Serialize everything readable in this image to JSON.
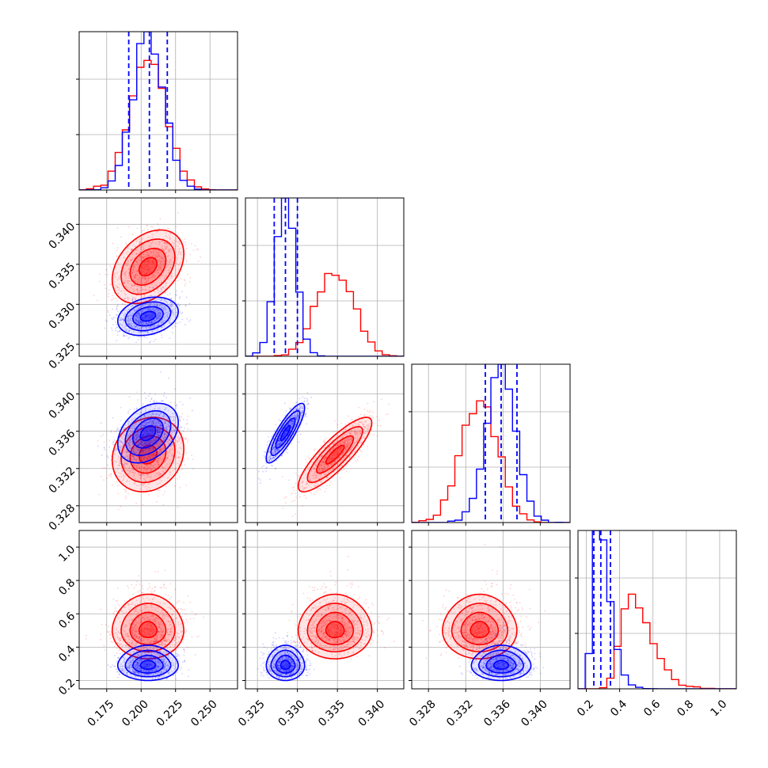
{
  "colors": {
    "red": "#ff0000",
    "blue": "#0000ff",
    "grid": "#b0b0b0",
    "axes": "#000000"
  },
  "chart_data": {
    "type": "corner",
    "grid": true,
    "parameters": [
      {
        "lim": [
          0.155,
          0.27
        ],
        "ticks": [
          0.175,
          0.2,
          0.225,
          0.25
        ],
        "tick_labels": [
          "0.175",
          "0.200",
          "0.225",
          "0.250"
        ]
      },
      {
        "lim": [
          0.3235,
          0.3433
        ],
        "ticks": [
          0.325,
          0.33,
          0.335,
          0.34
        ],
        "tick_labels": [
          "0.325",
          "0.330",
          "0.335",
          "0.340"
        ]
      },
      {
        "lim": [
          0.3262,
          0.3432
        ],
        "ticks": [
          0.328,
          0.332,
          0.336,
          0.34
        ],
        "tick_labels": [
          "0.328",
          "0.332",
          "0.336",
          "0.340"
        ]
      },
      {
        "lim": [
          0.15,
          1.1
        ],
        "ticks": [
          0.2,
          0.4,
          0.6,
          0.8,
          1.0
        ],
        "tick_labels": [
          "0.2",
          "0.4",
          "0.6",
          "0.8",
          "1.0"
        ]
      }
    ],
    "series": [
      {
        "color": "red",
        "means": [
          0.205,
          0.3347,
          0.3335,
          0.5
        ],
        "sds": [
          0.013,
          0.0023,
          0.002,
          0.085
        ],
        "skews": [
          0.0,
          0.0,
          0.0,
          0.8
        ],
        "correlations": [
          [
            0,
            1,
            0.35
          ],
          [
            0,
            2,
            0.15
          ],
          [
            1,
            2,
            0.85
          ],
          [
            0,
            3,
            0.0
          ],
          [
            1,
            3,
            0.0
          ],
          [
            2,
            3,
            0.0
          ]
        ]
      },
      {
        "color": "blue",
        "means": [
          0.205,
          0.3285,
          0.3358,
          0.29
        ],
        "sds": [
          0.011,
          0.0012,
          0.0016,
          0.045
        ],
        "skews": [
          0.0,
          0.0,
          0.0,
          1.0
        ],
        "correlations": [
          [
            0,
            1,
            0.25
          ],
          [
            0,
            2,
            0.35
          ],
          [
            1,
            2,
            0.85
          ],
          [
            0,
            3,
            0.0
          ],
          [
            1,
            3,
            0.0
          ],
          [
            2,
            3,
            0.0
          ]
        ]
      }
    ],
    "quantile_lines": {
      "color": "blue",
      "values": [
        [
          0.191,
          0.206,
          0.219
        ],
        [
          0.3271,
          0.3285,
          0.33
        ],
        [
          0.3341,
          0.3358,
          0.3375
        ],
        [
          0.245,
          0.287,
          0.345
        ]
      ]
    }
  }
}
